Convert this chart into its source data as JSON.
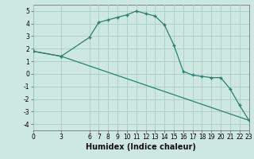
{
  "xlabel": "Humidex (Indice chaleur)",
  "ylabel": "",
  "bg_color": "#cce8e0",
  "grid_color": "#aaccc4",
  "line_color": "#2e7d6e",
  "line1_x": [
    0,
    3,
    6,
    7,
    8,
    9,
    10,
    11,
    12,
    13,
    14,
    15,
    16,
    17,
    18,
    19,
    20,
    21,
    22,
    23
  ],
  "line1_y": [
    1.8,
    1.4,
    2.9,
    4.1,
    4.3,
    4.5,
    4.7,
    5.0,
    4.8,
    4.6,
    3.9,
    2.3,
    0.2,
    -0.1,
    -0.2,
    -0.3,
    -0.3,
    -1.2,
    -2.5,
    -3.7
  ],
  "line2_x": [
    0,
    3,
    23
  ],
  "line2_y": [
    1.8,
    1.4,
    -3.7
  ],
  "xlim": [
    0,
    23
  ],
  "ylim": [
    -4.5,
    5.5
  ],
  "xticks": [
    0,
    3,
    6,
    7,
    8,
    9,
    10,
    11,
    12,
    13,
    14,
    15,
    16,
    17,
    18,
    19,
    20,
    21,
    22,
    23
  ],
  "yticks": [
    -4,
    -3,
    -2,
    -1,
    0,
    1,
    2,
    3,
    4,
    5
  ],
  "xlabel_fontsize": 7,
  "tick_fontsize": 5.5,
  "marker": "+",
  "markersize": 3.5,
  "linewidth": 0.9
}
